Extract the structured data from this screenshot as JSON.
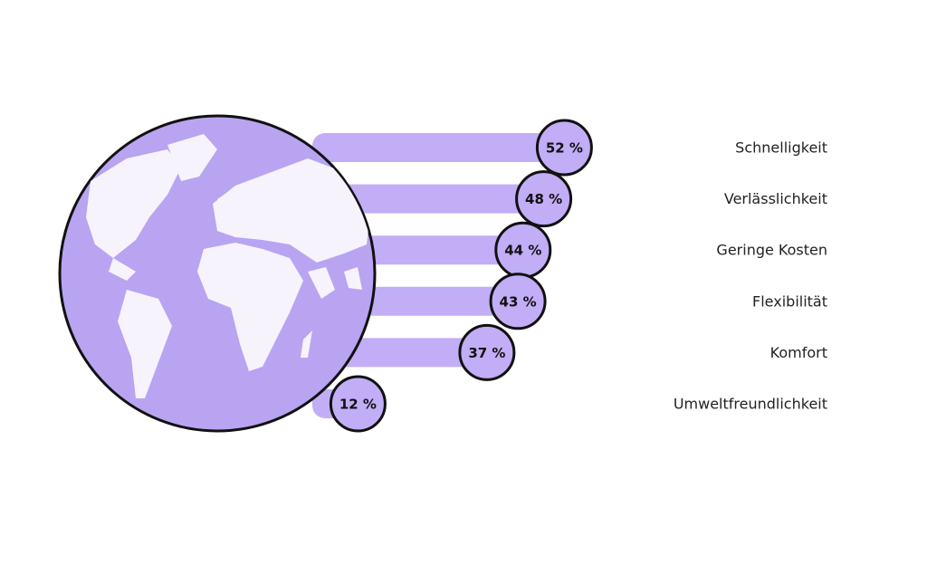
{
  "chart_data": {
    "type": "bar",
    "categories": [
      "Schnelligkeit",
      "Verlässlichkeit",
      "Geringe Kosten",
      "Flexibilität",
      "Komfort",
      "Umweltfreundlichkeit"
    ],
    "values": [
      52,
      48,
      44,
      43,
      37,
      12
    ],
    "value_labels": [
      "52 %",
      "48 %",
      "44 %",
      "43 %",
      "37 %",
      "12 %"
    ],
    "color": "#c2adf7"
  }
}
